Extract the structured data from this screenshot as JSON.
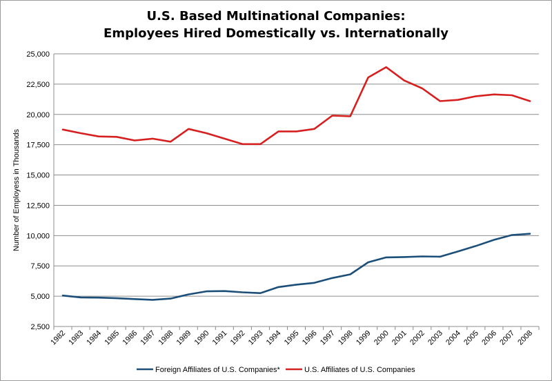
{
  "chart_data": {
    "type": "line",
    "title_line1": "U.S. Based Multinational Companies:",
    "title_line2": "Employees Hired Domestically vs. Internationally",
    "xlabel": "",
    "ylabel": "Number of Employess in Thousands",
    "ylim": [
      2500,
      25000
    ],
    "yticks": [
      "2,500",
      "5,000",
      "7,500",
      "10,000",
      "12,500",
      "15,000",
      "17,500",
      "20,000",
      "22,500",
      "25,000"
    ],
    "ytick_values": [
      2500,
      5000,
      7500,
      10000,
      12500,
      15000,
      17500,
      20000,
      22500,
      25000
    ],
    "grid": true,
    "legend_position": "bottom",
    "categories": [
      "1982",
      "1983",
      "1984",
      "1985",
      "1986",
      "1987",
      "1988",
      "1989",
      "1990",
      "1991",
      "1992",
      "1993",
      "1994",
      "1995",
      "1996",
      "1997",
      "1998",
      "1999",
      "2000",
      "2001",
      "2002",
      "2003",
      "2004",
      "2005",
      "2006",
      "2007",
      "2008"
    ],
    "series": [
      {
        "name": "Foreign Affiliates of U.S. Companies*",
        "color": "#1b4f7a",
        "values": [
          5050,
          4900,
          4880,
          4830,
          4760,
          4700,
          4800,
          5150,
          5400,
          5420,
          5320,
          5250,
          5750,
          5950,
          6100,
          6500,
          6800,
          7800,
          8200,
          8230,
          8280,
          8260,
          8700,
          9150,
          9650,
          10050,
          10150
        ]
      },
      {
        "name": "U.S. Affiliates of U.S. Companies",
        "color": "#d62020",
        "values": [
          18750,
          18450,
          18180,
          18150,
          17850,
          18000,
          17750,
          18800,
          18450,
          18000,
          17550,
          17550,
          18600,
          18600,
          18800,
          19900,
          19850,
          23050,
          23900,
          22800,
          22150,
          21100,
          21200,
          21500,
          21650,
          21580,
          21100
        ]
      }
    ]
  }
}
